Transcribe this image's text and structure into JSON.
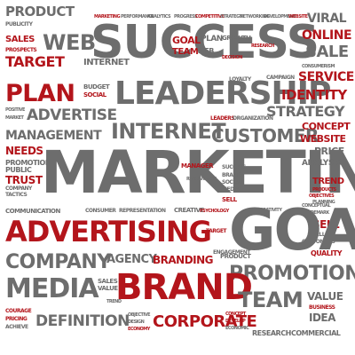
{
  "words": [
    {
      "text": "PRODUCT",
      "color": "gray"
    },
    {
      "text": "MARKETING",
      "color": "red"
    },
    {
      "text": "PERFORMANCE",
      "color": "gray"
    },
    {
      "text": "ANALYTICS",
      "color": "gray"
    },
    {
      "text": "PROGRESS",
      "color": "gray"
    },
    {
      "text": "COMPETITIVE",
      "color": "red"
    },
    {
      "text": "STRATEGY",
      "color": "gray"
    },
    {
      "text": "NETWORKING",
      "color": "gray"
    },
    {
      "text": "DEVELOPMENT",
      "color": "gray"
    },
    {
      "text": "WEBSITE",
      "color": "red"
    },
    {
      "text": "VIRAL",
      "color": "gray"
    },
    {
      "text": "PUBLICITY",
      "color": "gray"
    },
    {
      "text": "SUCCESS",
      "color": "gray"
    },
    {
      "text": "GOAL",
      "color": "red"
    },
    {
      "text": "PLAN",
      "color": "gray"
    },
    {
      "text": "GROWTH",
      "color": "gray"
    },
    {
      "text": "ONLINE",
      "color": "red"
    },
    {
      "text": "SALES",
      "color": "red"
    },
    {
      "text": "WEB",
      "color": "gray"
    },
    {
      "text": "SALE",
      "color": "gray"
    },
    {
      "text": "TARGET",
      "color": "red"
    },
    {
      "text": "TEAM",
      "color": "red"
    },
    {
      "text": "SERVICE",
      "color": "red"
    },
    {
      "text": "PLAN",
      "color": "red"
    },
    {
      "text": "LEADERSHIP",
      "color": "gray"
    },
    {
      "text": "IDENTITY",
      "color": "red"
    },
    {
      "text": "ADVERTISE",
      "color": "gray"
    },
    {
      "text": "STRATEGY",
      "color": "gray"
    },
    {
      "text": "INTERNET",
      "color": "gray"
    },
    {
      "text": "MANAGEMENT",
      "color": "gray"
    },
    {
      "text": "CUSTOMER",
      "color": "gray"
    },
    {
      "text": "CONCEPT",
      "color": "red"
    },
    {
      "text": "WEBSITE",
      "color": "red"
    },
    {
      "text": "PRICE",
      "color": "gray"
    },
    {
      "text": "NEEDS",
      "color": "red"
    },
    {
      "text": "PROMOTION",
      "color": "gray"
    },
    {
      "text": "PUBLIC",
      "color": "gray"
    },
    {
      "text": "TRUST",
      "color": "red"
    },
    {
      "text": "MARKETING",
      "color": "gray"
    },
    {
      "text": "ANALYSIS",
      "color": "gray"
    },
    {
      "text": "TREND",
      "color": "red"
    },
    {
      "text": "COMMUNICATION",
      "color": "gray"
    },
    {
      "text": "CONSUMER",
      "color": "gray"
    },
    {
      "text": "REPRESENTATION",
      "color": "gray"
    },
    {
      "text": "CREATIVE",
      "color": "gray"
    },
    {
      "text": "ADVERTISING",
      "color": "red"
    },
    {
      "text": "GOAL",
      "color": "gray"
    },
    {
      "text": "SELL",
      "color": "red"
    },
    {
      "text": "COMPANY",
      "color": "gray"
    },
    {
      "text": "AGENCY",
      "color": "gray"
    },
    {
      "text": "BRANDING",
      "color": "red"
    },
    {
      "text": "PRODUCT",
      "color": "gray"
    },
    {
      "text": "PROMOTION",
      "color": "gray"
    },
    {
      "text": "QUALITY",
      "color": "red"
    },
    {
      "text": "MEDIA",
      "color": "gray"
    },
    {
      "text": "BRAND",
      "color": "red"
    },
    {
      "text": "VALUE",
      "color": "gray"
    },
    {
      "text": "TEAM",
      "color": "gray"
    },
    {
      "text": "DEFINITION",
      "color": "gray"
    },
    {
      "text": "CORPORATE",
      "color": "red"
    },
    {
      "text": "RESEARCH",
      "color": "gray"
    },
    {
      "text": "COMMERCIAL",
      "color": "gray"
    },
    {
      "text": "IDEA",
      "color": "gray"
    },
    {
      "text": "COURAGE",
      "color": "red"
    },
    {
      "text": "PRICING",
      "color": "red"
    },
    {
      "text": "ACHIEVE",
      "color": "gray"
    },
    {
      "text": "ECONOMY",
      "color": "red"
    },
    {
      "text": "DESIGN",
      "color": "gray"
    },
    {
      "text": "OBJECTIVE",
      "color": "gray"
    },
    {
      "text": "BUSINESS",
      "color": "red"
    },
    {
      "text": "ORGANIZATION",
      "color": "gray"
    },
    {
      "text": "MANAGER",
      "color": "red"
    },
    {
      "text": "SUCCESS",
      "color": "gray"
    },
    {
      "text": "BRAND",
      "color": "gray"
    },
    {
      "text": "SOCIAL",
      "color": "gray"
    },
    {
      "text": "MEDIA",
      "color": "gray"
    },
    {
      "text": "SELL",
      "color": "gray"
    },
    {
      "text": "PSYCHOLOGY",
      "color": "red"
    },
    {
      "text": "CREATIVITY",
      "color": "gray"
    },
    {
      "text": "LOYALTY",
      "color": "gray"
    },
    {
      "text": "CAMPAIGN",
      "color": "gray"
    },
    {
      "text": "BUDGET",
      "color": "gray"
    },
    {
      "text": "SOCIAL",
      "color": "red"
    },
    {
      "text": "POSITIVE",
      "color": "gray"
    },
    {
      "text": "MARKET",
      "color": "gray"
    },
    {
      "text": "TACTICS",
      "color": "gray"
    },
    {
      "text": "COMPANY",
      "color": "gray"
    },
    {
      "text": "ENGAGEMENT",
      "color": "gray"
    },
    {
      "text": "RECOGNITION",
      "color": "gray"
    },
    {
      "text": "TRADEMARK",
      "color": "gray"
    },
    {
      "text": "SELLING",
      "color": "gray"
    },
    {
      "text": "CUSTOMERS",
      "color": "gray"
    },
    {
      "text": "PLANNING",
      "color": "gray"
    },
    {
      "text": "PRODUCTS",
      "color": "red"
    },
    {
      "text": "OBJECTIVES",
      "color": "red"
    },
    {
      "text": "CONCEPTUAL",
      "color": "gray"
    },
    {
      "text": "CONSUMERISM",
      "color": "gray"
    },
    {
      "text": "PROSPECTS",
      "color": "red"
    },
    {
      "text": "INTERNET",
      "color": "gray"
    },
    {
      "text": "LEADERS",
      "color": "red"
    },
    {
      "text": "DECISION",
      "color": "red"
    },
    {
      "text": "RESEARCH",
      "color": "red"
    },
    {
      "text": "ECONOMIC",
      "color": "gray"
    },
    {
      "text": "DEVELOP",
      "color": "red"
    },
    {
      "text": "CONCEPT",
      "color": "red"
    },
    {
      "text": "TREND",
      "color": "gray"
    },
    {
      "text": "WEB",
      "color": "gray"
    }
  ]
}
